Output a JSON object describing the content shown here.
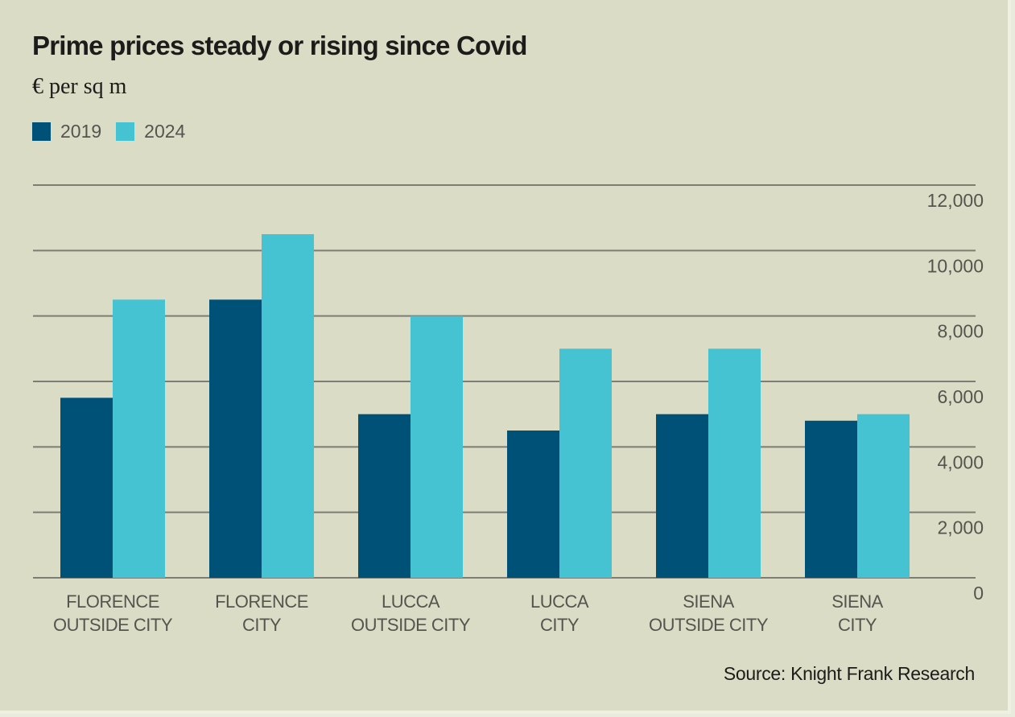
{
  "chart_data": {
    "type": "bar",
    "title": "Prime prices steady or rising since Covid",
    "subtitle": "€ per sq m",
    "xlabel": "",
    "ylabel": "€ per sq m",
    "ylim": [
      0,
      12000
    ],
    "yticks": [
      0,
      2000,
      4000,
      6000,
      8000,
      10000,
      12000
    ],
    "ytick_labels": [
      "0",
      "2,000",
      "4,000",
      "6,000",
      "8,000",
      "10,000",
      "12,000"
    ],
    "y_axis_side": "right",
    "grid": true,
    "legend_position": "top-left",
    "categories": [
      [
        "FLORENCE",
        "OUTSIDE CITY"
      ],
      [
        "FLORENCE",
        "CITY"
      ],
      [
        "LUCCA",
        "OUTSIDE CITY"
      ],
      [
        "LUCCA",
        "CITY"
      ],
      [
        "SIENA",
        "OUTSIDE CITY"
      ],
      [
        "SIENA",
        "CITY"
      ]
    ],
    "series": [
      {
        "name": "2019",
        "color": "#005178",
        "values": [
          5500,
          8500,
          5000,
          4500,
          5000,
          4800
        ]
      },
      {
        "name": "2024",
        "color": "#45c3d2",
        "values": [
          8500,
          10500,
          8000,
          7000,
          7000,
          5000
        ]
      }
    ],
    "source": "Source: Knight Frank Research"
  }
}
